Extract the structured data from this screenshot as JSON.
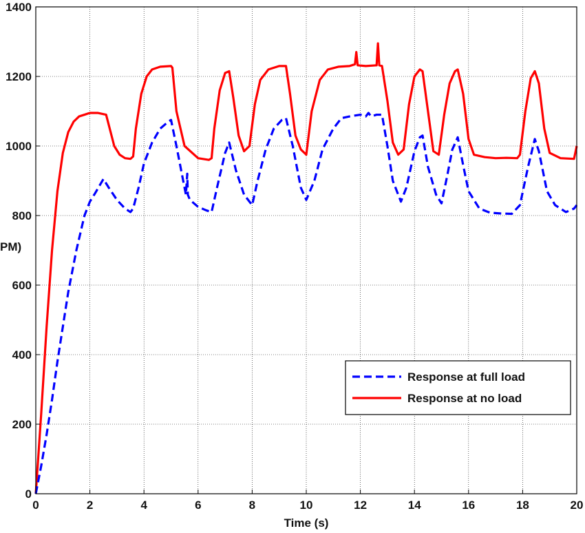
{
  "chart_data": {
    "type": "line",
    "xlabel": "Time (s)",
    "ylabel": "PM)",
    "xlim": [
      0,
      20
    ],
    "ylim": [
      0,
      1400
    ],
    "xticks": [
      0,
      2,
      4,
      6,
      8,
      10,
      12,
      14,
      16,
      18,
      20
    ],
    "yticks": [
      0,
      200,
      400,
      600,
      800,
      1000,
      1200,
      1400
    ],
    "grid": true,
    "legend_position": "bottom-right",
    "series": [
      {
        "name": "Response at full load",
        "color": "#0000ff",
        "style": "dashed",
        "x": [
          0,
          0.2,
          0.4,
          0.6,
          0.8,
          1.0,
          1.2,
          1.5,
          1.8,
          2.0,
          2.2,
          2.5,
          2.7,
          3.0,
          3.3,
          3.5,
          3.6,
          3.8,
          4.0,
          4.3,
          4.6,
          4.9,
          5.0,
          5.2,
          5.4,
          5.55,
          5.6,
          5.62,
          5.7,
          6.0,
          6.3,
          6.5,
          6.7,
          7.0,
          7.15,
          7.4,
          7.7,
          8.0,
          8.2,
          8.5,
          8.8,
          9.1,
          9.25,
          9.5,
          9.8,
          10.0,
          10.3,
          10.6,
          11.0,
          11.3,
          11.6,
          12.0,
          12.2,
          12.3,
          12.4,
          12.6,
          12.8,
          13.0,
          13.2,
          13.5,
          13.7,
          14.0,
          14.2,
          14.3,
          14.5,
          14.8,
          15.0,
          15.2,
          15.4,
          15.6,
          15.8,
          16.0,
          16.4,
          16.8,
          17.2,
          17.6,
          17.9,
          18.2,
          18.45,
          18.6,
          18.9,
          19.2,
          19.6,
          19.9,
          20.0
        ],
        "y": [
          0,
          80,
          170,
          270,
          380,
          480,
          580,
          700,
          800,
          840,
          865,
          905,
          880,
          845,
          820,
          810,
          820,
          880,
          950,
          1010,
          1050,
          1070,
          1075,
          1000,
          920,
          860,
          920,
          860,
          845,
          825,
          815,
          810,
          880,
          980,
          1010,
          930,
          860,
          830,
          900,
          990,
          1050,
          1075,
          1080,
          1000,
          880,
          845,
          900,
          990,
          1050,
          1080,
          1085,
          1090,
          1085,
          1095,
          1085,
          1090,
          1090,
          1000,
          900,
          840,
          880,
          985,
          1025,
          1030,
          940,
          860,
          835,
          910,
          990,
          1025,
          945,
          870,
          820,
          808,
          806,
          805,
          830,
          940,
          1020,
          985,
          870,
          830,
          810,
          820,
          830
        ]
      },
      {
        "name": "Response at no load",
        "color": "#ff0000",
        "style": "solid",
        "x": [
          0,
          0.2,
          0.4,
          0.6,
          0.8,
          1.0,
          1.2,
          1.4,
          1.6,
          1.8,
          2.0,
          2.3,
          2.6,
          2.7,
          2.9,
          3.1,
          3.3,
          3.5,
          3.6,
          3.7,
          3.9,
          4.1,
          4.3,
          4.6,
          5.0,
          5.05,
          5.2,
          5.5,
          6.0,
          6.4,
          6.5,
          6.6,
          6.8,
          7.0,
          7.15,
          7.3,
          7.5,
          7.7,
          7.9,
          8.1,
          8.3,
          8.6,
          9.0,
          9.25,
          9.4,
          9.6,
          9.8,
          10.0,
          10.2,
          10.5,
          10.8,
          11.2,
          11.6,
          11.8,
          11.85,
          11.9,
          12.2,
          12.6,
          12.65,
          12.7,
          12.8,
          13.0,
          13.2,
          13.4,
          13.6,
          13.8,
          14.0,
          14.2,
          14.3,
          14.5,
          14.7,
          14.9,
          15.1,
          15.3,
          15.5,
          15.6,
          15.8,
          16.0,
          16.2,
          16.6,
          17.0,
          17.4,
          17.8,
          17.9,
          18.1,
          18.3,
          18.45,
          18.6,
          18.8,
          19.0,
          19.4,
          19.9,
          20.0
        ],
        "y": [
          0,
          230,
          480,
          700,
          870,
          980,
          1040,
          1070,
          1085,
          1090,
          1095,
          1095,
          1090,
          1060,
          1000,
          975,
          965,
          963,
          970,
          1050,
          1150,
          1200,
          1220,
          1228,
          1230,
          1225,
          1100,
          1000,
          965,
          960,
          965,
          1050,
          1160,
          1210,
          1215,
          1140,
          1030,
          985,
          1000,
          1120,
          1190,
          1220,
          1230,
          1230,
          1150,
          1030,
          990,
          975,
          1100,
          1190,
          1220,
          1228,
          1230,
          1235,
          1270,
          1232,
          1230,
          1232,
          1295,
          1232,
          1230,
          1130,
          1010,
          975,
          990,
          1120,
          1200,
          1220,
          1215,
          1100,
          985,
          975,
          1090,
          1180,
          1215,
          1220,
          1150,
          1020,
          975,
          968,
          965,
          966,
          965,
          975,
          1100,
          1195,
          1215,
          1180,
          1050,
          980,
          965,
          963,
          1000
        ]
      }
    ]
  }
}
